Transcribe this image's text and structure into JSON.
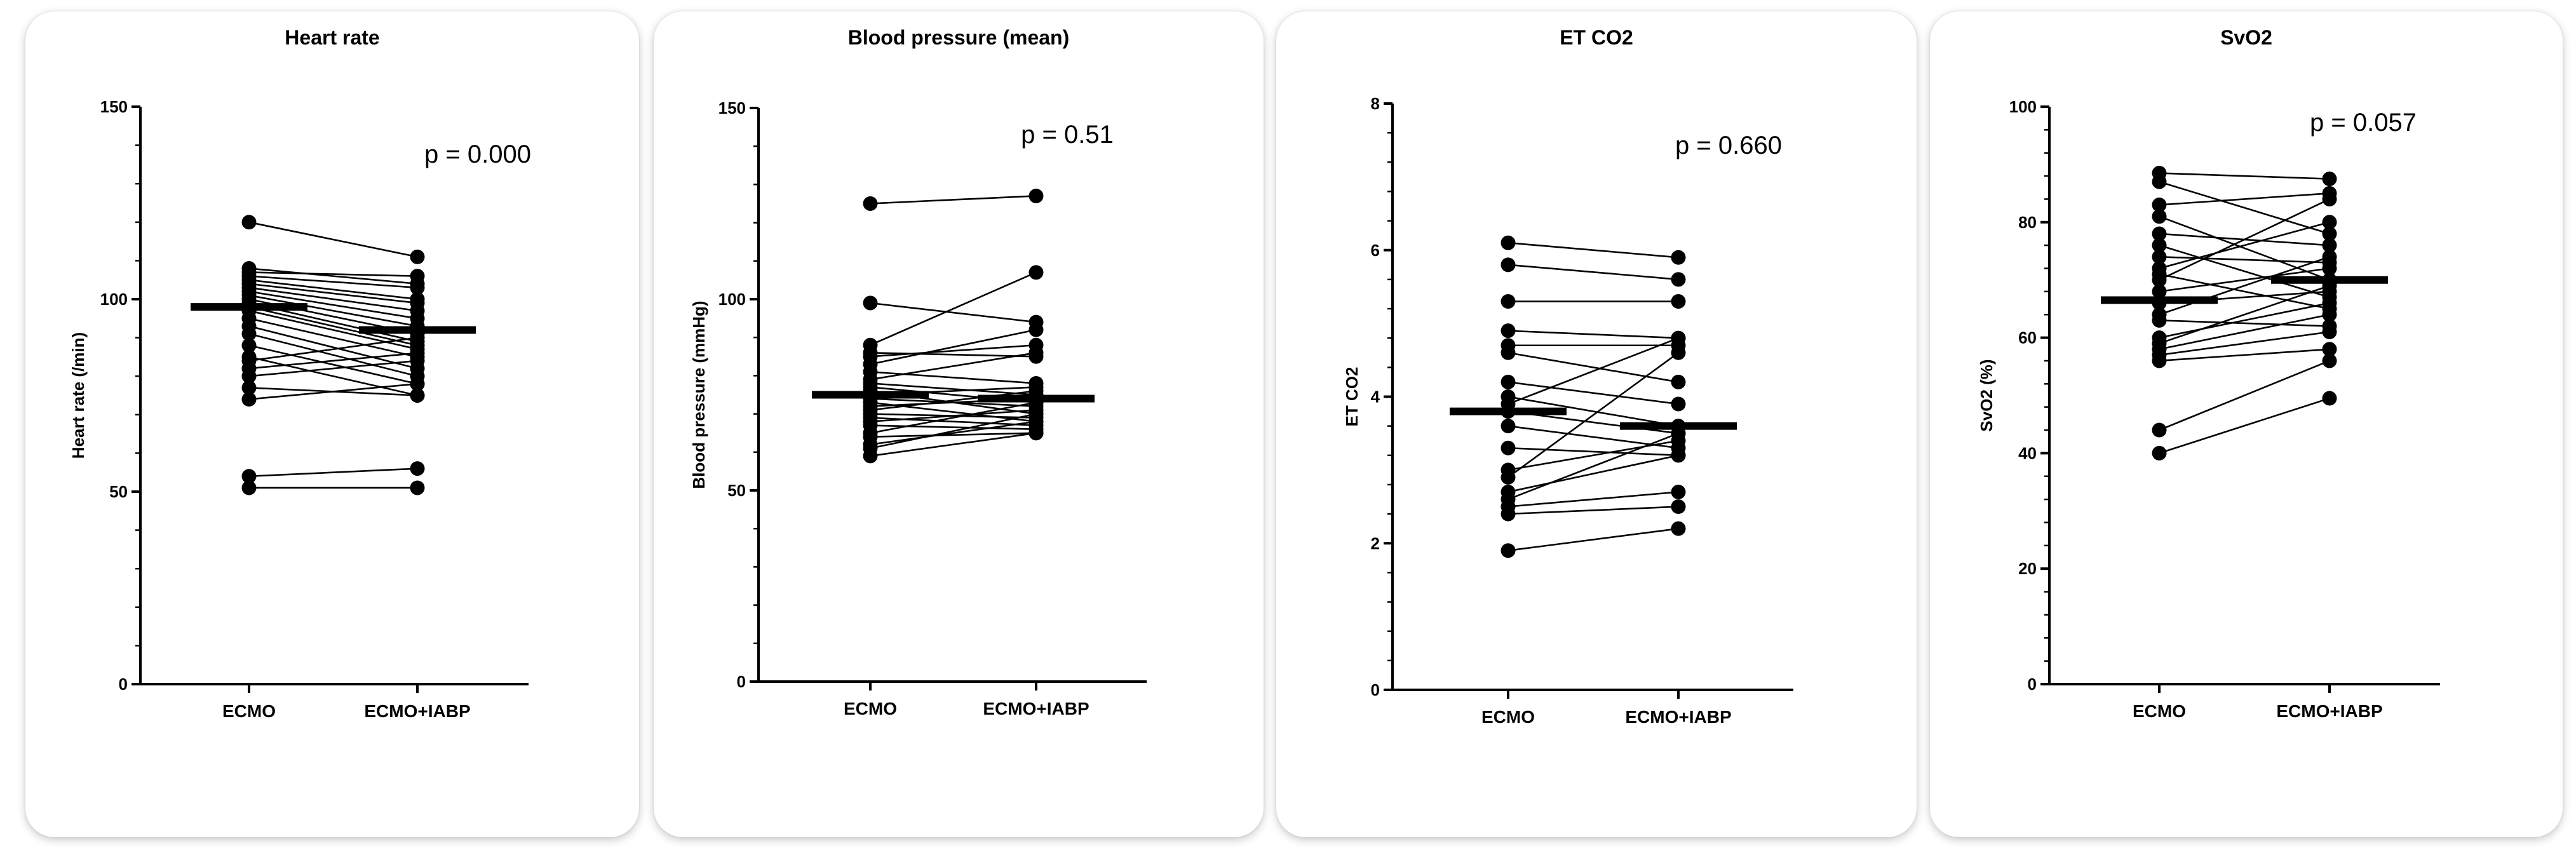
{
  "chart_data": [
    {
      "type": "scatter",
      "subtype": "paired-dot-plot",
      "title": "Heart rate",
      "ylabel": "Heart rate (/min)",
      "xlabel": "",
      "categories": [
        "ECMO",
        "ECMO+IABP"
      ],
      "ylim": [
        0,
        150
      ],
      "yticks": [
        0,
        50,
        100,
        150
      ],
      "annotation": "p = 0.000",
      "means": [
        98,
        92
      ],
      "pairs": [
        [
          120,
          111
        ],
        [
          108,
          104
        ],
        [
          107,
          106
        ],
        [
          106,
          103
        ],
        [
          105,
          100
        ],
        [
          104,
          99
        ],
        [
          103,
          97
        ],
        [
          102,
          95
        ],
        [
          101,
          93
        ],
        [
          100,
          91
        ],
        [
          99,
          89
        ],
        [
          98,
          88
        ],
        [
          97,
          87
        ],
        [
          95,
          85
        ],
        [
          93,
          82
        ],
        [
          91,
          80
        ],
        [
          88,
          78
        ],
        [
          85,
          75
        ],
        [
          84,
          90
        ],
        [
          82,
          86
        ],
        [
          80,
          84
        ],
        [
          77,
          75
        ],
        [
          74,
          78
        ],
        [
          54,
          56
        ],
        [
          51,
          51
        ]
      ]
    },
    {
      "type": "scatter",
      "subtype": "paired-dot-plot",
      "title": "Blood pressure (mean)",
      "ylabel": "Blood pressure (mmHg)",
      "xlabel": "",
      "categories": [
        "ECMO",
        "ECMO+IABP"
      ],
      "ylim": [
        0,
        150
      ],
      "yticks": [
        0,
        50,
        100,
        150
      ],
      "annotation": "p = 0.51",
      "means": [
        75,
        74
      ],
      "pairs": [
        [
          125,
          127
        ],
        [
          99,
          94
        ],
        [
          88,
          107
        ],
        [
          86,
          85
        ],
        [
          85,
          88
        ],
        [
          83,
          92
        ],
        [
          81,
          78
        ],
        [
          79,
          86
        ],
        [
          78,
          75
        ],
        [
          77,
          73
        ],
        [
          76,
          70
        ],
        [
          75,
          77
        ],
        [
          74,
          72
        ],
        [
          73,
          68
        ],
        [
          72,
          74
        ],
        [
          71,
          76
        ],
        [
          70,
          69
        ],
        [
          69,
          67
        ],
        [
          68,
          71
        ],
        [
          67,
          66
        ],
        [
          65,
          73
        ],
        [
          64,
          65
        ],
        [
          62,
          68
        ],
        [
          61,
          70
        ],
        [
          59,
          65
        ]
      ]
    },
    {
      "type": "scatter",
      "subtype": "paired-dot-plot",
      "title": "ET CO2",
      "ylabel": "ET CO2",
      "xlabel": "",
      "categories": [
        "ECMO",
        "ECMO+IABP"
      ],
      "ylim": [
        0,
        8
      ],
      "yticks": [
        0,
        2,
        4,
        6,
        8
      ],
      "annotation": "p = 0.660",
      "means": [
        3.8,
        3.6
      ],
      "pairs": [
        [
          6.1,
          5.9
        ],
        [
          5.8,
          5.6
        ],
        [
          5.3,
          5.3
        ],
        [
          4.9,
          4.8
        ],
        [
          4.7,
          4.7
        ],
        [
          4.6,
          4.2
        ],
        [
          4.2,
          3.9
        ],
        [
          4.0,
          3.6
        ],
        [
          3.9,
          4.8
        ],
        [
          3.8,
          3.5
        ],
        [
          3.6,
          3.3
        ],
        [
          3.3,
          3.2
        ],
        [
          3.0,
          3.4
        ],
        [
          2.9,
          4.6
        ],
        [
          2.7,
          3.2
        ],
        [
          2.6,
          3.5
        ],
        [
          2.5,
          2.7
        ],
        [
          2.4,
          2.5
        ],
        [
          1.9,
          2.2
        ]
      ]
    },
    {
      "type": "scatter",
      "subtype": "paired-dot-plot",
      "title": "SvO2",
      "ylabel": "SvO2 (%)",
      "xlabel": "",
      "categories": [
        "ECMO",
        "ECMO+IABP"
      ],
      "ylim": [
        0,
        100
      ],
      "yticks": [
        0,
        20,
        40,
        60,
        80,
        100
      ],
      "annotation": "p = 0.057",
      "means": [
        66.5,
        70
      ],
      "pairs": [
        [
          88.5,
          87.5
        ],
        [
          87,
          78
        ],
        [
          83,
          85
        ],
        [
          81,
          70
        ],
        [
          78,
          76
        ],
        [
          76,
          67
        ],
        [
          74,
          73
        ],
        [
          72,
          80
        ],
        [
          71,
          65
        ],
        [
          70,
          84
        ],
        [
          68,
          72
        ],
        [
          66,
          68
        ],
        [
          64,
          74
        ],
        [
          63,
          62
        ],
        [
          60,
          66
        ],
        [
          59,
          69
        ],
        [
          58,
          64
        ],
        [
          57,
          61
        ],
        [
          56,
          58
        ],
        [
          44,
          56
        ],
        [
          40,
          49.5
        ]
      ]
    }
  ]
}
